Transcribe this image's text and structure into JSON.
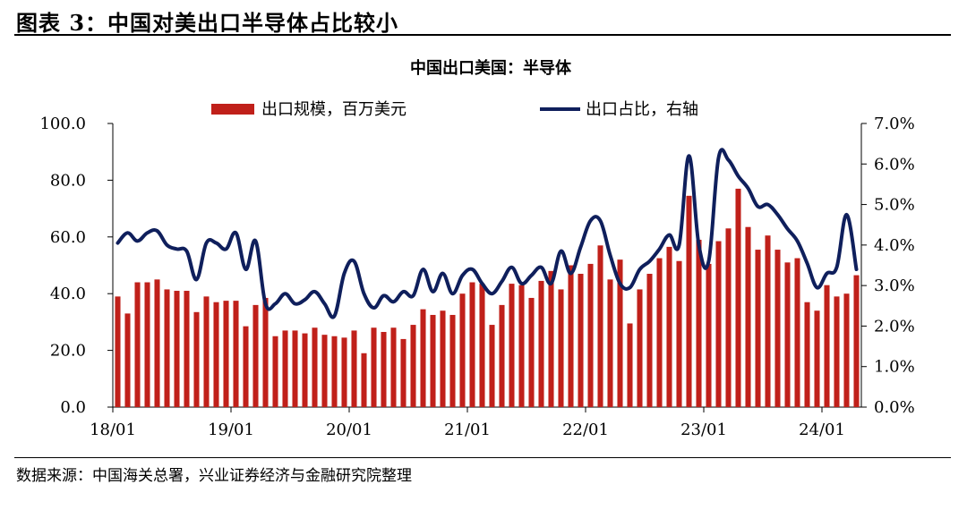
{
  "figure": {
    "title": "图表 3：中国对美出口半导体占比较小",
    "source": "数据来源：中国海关总署，兴业证券经济与金融研究院整理"
  },
  "chart_data": {
    "type": "bar+line",
    "title": "中国出口美国：半导体",
    "legend": [
      {
        "label": "出口规模，百万美元",
        "kind": "bar",
        "color": "#C0201A"
      },
      {
        "label": "出口占比，右轴",
        "kind": "line",
        "color": "#0F1F5C"
      }
    ],
    "legend_position": "top",
    "x_tick_labels": [
      "18/01",
      "19/01",
      "20/01",
      "21/01",
      "22/01",
      "23/01",
      "24/01"
    ],
    "x_tick_index": [
      0,
      12,
      24,
      36,
      48,
      60,
      72
    ],
    "left_axis": {
      "ylim": [
        0,
        100
      ],
      "ticks": [
        "0.0",
        "20.0",
        "40.0",
        "60.0",
        "80.0",
        "100.0"
      ]
    },
    "right_axis": {
      "ylim": [
        0,
        7
      ],
      "ticks": [
        "0.0%",
        "1.0%",
        "2.0%",
        "3.0%",
        "4.0%",
        "5.0%",
        "6.0%",
        "7.0%"
      ]
    },
    "grid": false,
    "series": [
      {
        "name": "出口规模，百万美元",
        "axis": "left",
        "values": [
          39,
          33,
          44,
          44,
          45,
          41.5,
          41,
          41,
          33.5,
          39,
          37,
          37.5,
          37.5,
          28.5,
          36,
          38.5,
          25,
          27,
          27,
          26,
          28,
          25.5,
          25,
          24.5,
          27,
          19,
          28,
          26.5,
          28,
          24,
          29,
          34.5,
          32.5,
          34,
          32.5,
          40,
          44,
          43.5,
          29,
          36,
          43.5,
          43,
          38.5,
          44.5,
          48,
          41.5,
          50,
          47,
          50.5,
          57,
          45,
          52,
          29.5,
          41.5,
          47,
          52.5,
          56.5,
          51.5,
          74.5,
          59,
          50.5,
          58.5,
          63,
          77,
          63.5,
          55.5,
          60.5,
          55.5,
          51,
          52.5,
          37,
          34,
          43,
          39,
          40,
          46.5
        ]
      },
      {
        "name": "出口占比，右轴",
        "axis": "right",
        "values": [
          4.05,
          4.3,
          4.1,
          4.3,
          4.35,
          4.0,
          3.9,
          3.85,
          3.15,
          4.05,
          4.05,
          3.9,
          4.3,
          3.4,
          4.1,
          2.55,
          2.55,
          2.8,
          2.55,
          2.65,
          2.85,
          2.55,
          2.25,
          3.3,
          3.6,
          2.8,
          2.45,
          2.75,
          2.6,
          2.85,
          2.75,
          3.4,
          2.85,
          3.3,
          2.8,
          3.25,
          3.4,
          3.05,
          2.8,
          3.1,
          3.45,
          3.05,
          3.25,
          3.45,
          3.05,
          3.85,
          3.3,
          3.95,
          4.6,
          4.6,
          3.75,
          3.05,
          2.95,
          3.4,
          3.6,
          3.9,
          4.25,
          4.0,
          6.2,
          4.0,
          3.6,
          6.15,
          6.1,
          5.7,
          5.4,
          4.95,
          5.0,
          4.75,
          4.4,
          4.1,
          3.55,
          2.95,
          3.3,
          3.45,
          4.75,
          3.4
        ]
      }
    ]
  }
}
